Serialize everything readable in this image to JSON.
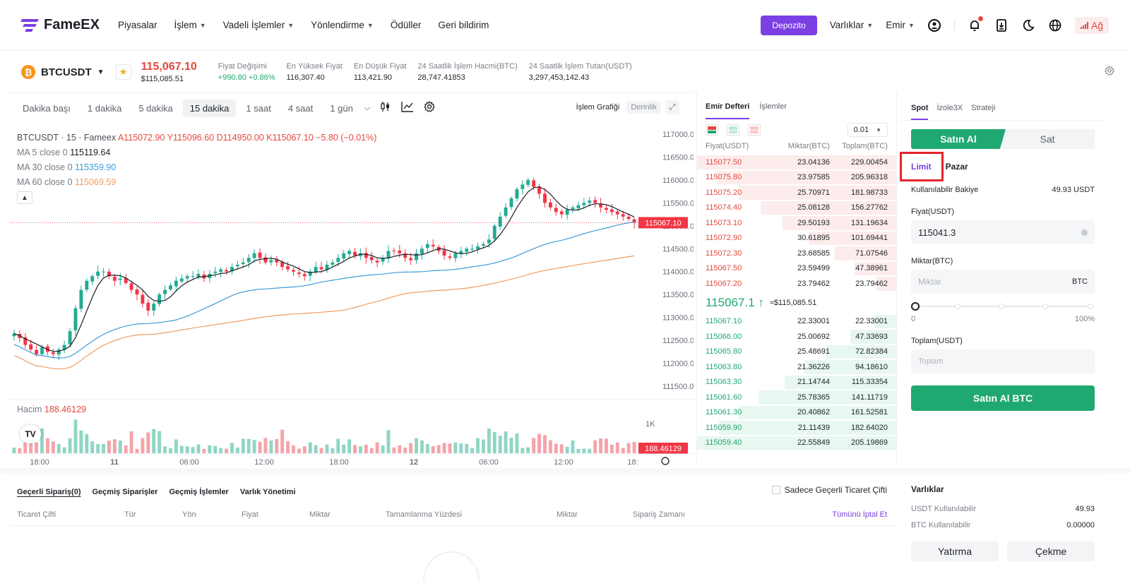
{
  "nav": {
    "logo": "FameEX",
    "items": [
      {
        "label": "Piyasalar",
        "caret": false
      },
      {
        "label": "İşlem",
        "caret": true
      },
      {
        "label": "Vadeli İşlemler",
        "caret": true
      },
      {
        "label": "Yönlendirme",
        "caret": true
      },
      {
        "label": "Ödüller",
        "caret": false
      },
      {
        "label": "Geri bildirim",
        "caret": false
      }
    ],
    "deposit": "Depozito",
    "assets_menu": "Varlıklar",
    "orders_menu": "Emir",
    "network": "Ağ",
    "colors": {
      "accent": "#7b3fe4",
      "up": "#1fa971",
      "down": "#e5483d"
    },
    "icons": [
      "user-icon",
      "bell-icon",
      "download-icon",
      "moon-icon",
      "globe-icon"
    ]
  },
  "ticker": {
    "pair": "BTCUSDT",
    "last_price": "115,067.10",
    "usd_price": "$115,085.51",
    "stats": [
      {
        "label": "Fiyat Değişimi",
        "value": "+990.80 +0.86%",
        "green": true
      },
      {
        "label": "En Yüksek Fiyat",
        "value": "116,307.40",
        "green": false
      },
      {
        "label": "En Düşük Fiyat",
        "value": "113,421.90",
        "green": false
      },
      {
        "label": "24 Saatlik İşlem Hacmi(BTC)",
        "value": "28,747.41853",
        "green": false
      },
      {
        "label": "24 Saatlik İşlem Tutarı(USDT)",
        "value": "3,297,453,142.43",
        "green": false
      }
    ]
  },
  "chart": {
    "intervals": [
      "Dakika başı",
      "1 dakika",
      "5 dakika",
      "15 dakika",
      "1 saat",
      "4 saat",
      "1 gün"
    ],
    "active_interval": "15 dakika",
    "tabs": [
      "İşlem Grafiği",
      "Derinlik"
    ],
    "legend": {
      "title": "BTCUSDT · 15 · Fameex",
      "ohlc": "A115072.90 Y115096.60 D114950.00 K115067.10 −5.80 (−0.01%)",
      "ma5_label": "MA 5 close 0",
      "ma5_value": "115119.64",
      "ma30_label": "MA 30 close 0",
      "ma30_value": "115359.90",
      "ma60_label": "MA 60 close 0",
      "ma60_value": "115069.59"
    },
    "volume_label": "Hacim",
    "volume_value": "188.46129",
    "price_badge": "115067.10",
    "volume_badge": "188.46129",
    "volume_axis_label": "1K",
    "tv_logo": "TV"
  },
  "chart_data": {
    "type": "candlestick",
    "ylim": [
      111500,
      117000
    ],
    "yticks": [
      "117000.00",
      "116500.00",
      "116000.00",
      "115500.00",
      "115000.00",
      "114500.00",
      "114000.00",
      "113500.00",
      "113000.00",
      "112500.00",
      "112000.00",
      "111500.00"
    ],
    "xticks": [
      "18:00",
      "11",
      "06:00",
      "12:00",
      "18:00",
      "12",
      "06:00",
      "12:00",
      "18:"
    ],
    "last_price": 115067.1,
    "close": [
      112650,
      112550,
      112400,
      112300,
      112200,
      112350,
      112250,
      112200,
      112300,
      112400,
      112700,
      113200,
      113600,
      113800,
      113900,
      114000,
      114000,
      113900,
      113800,
      113850,
      113750,
      113600,
      113500,
      113300,
      113150,
      113300,
      113500,
      113600,
      113700,
      113800,
      113850,
      113900,
      113900,
      113950,
      113850,
      113950,
      114000,
      114050,
      114000,
      114100,
      114150,
      114200,
      114300,
      114400,
      114300,
      114200,
      114250,
      114200,
      114100,
      114050,
      114000,
      113950,
      113900,
      114000,
      114100,
      114050,
      114150,
      114200,
      114300,
      114400,
      114450,
      114350,
      114400,
      114300,
      114250,
      114200,
      114300,
      114450,
      114450,
      114400,
      114300,
      114250,
      114400,
      114500,
      114600,
      114550,
      114450,
      114350,
      114300,
      114400,
      114450,
      114500,
      114500,
      114550,
      114600,
      114700,
      115000,
      115200,
      115400,
      115600,
      115800,
      115900,
      116000,
      115850,
      115700,
      115500,
      115400,
      115300,
      115250,
      115350,
      115400,
      115450,
      115500,
      115550,
      115500,
      115400,
      115350,
      115300,
      115250,
      115200,
      115150,
      115067
    ],
    "ma_series": [
      {
        "name": "MA 5",
        "color": "#1b1e26"
      },
      {
        "name": "MA 30",
        "color": "#3d9bdc"
      },
      {
        "name": "MA 60",
        "color": "#f19c62"
      }
    ]
  },
  "orderbook": {
    "tabs": [
      "Emir Defteri",
      "İşlemler"
    ],
    "precision": "0.01",
    "headers": [
      "Fiyat(USDT)",
      "Miktar(BTC)",
      "Toplam(BTC)"
    ],
    "asks": [
      {
        "price": "115077.50",
        "amount": "23.04136",
        "total": "229.00454",
        "depth": 1.0
      },
      {
        "price": "115075.80",
        "amount": "23.97585",
        "total": "205.96318",
        "depth": 0.9
      },
      {
        "price": "115075.20",
        "amount": "25.70971",
        "total": "181.98733",
        "depth": 0.79
      },
      {
        "price": "115074.40",
        "amount": "25.08128",
        "total": "156.27762",
        "depth": 0.68
      },
      {
        "price": "115073.10",
        "amount": "29.50193",
        "total": "131.19634",
        "depth": 0.57
      },
      {
        "price": "115072.90",
        "amount": "30.61895",
        "total": "101.69441",
        "depth": 0.44
      },
      {
        "price": "115072.30",
        "amount": "23.68585",
        "total": "71.07546",
        "depth": 0.31
      },
      {
        "price": "115067.50",
        "amount": "23.59499",
        "total": "47.38961",
        "depth": 0.21
      },
      {
        "price": "115067.20",
        "amount": "23.79462",
        "total": "23.79462",
        "depth": 0.1
      }
    ],
    "mid_price": "115067.1",
    "mid_arrow": "↑",
    "mid_usd": "≈$115,085.51",
    "bids": [
      {
        "price": "115067.10",
        "amount": "22.33001",
        "total": "22.33001",
        "depth": 0.11
      },
      {
        "price": "115066.00",
        "amount": "25.00692",
        "total": "47.33693",
        "depth": 0.23
      },
      {
        "price": "115065.80",
        "amount": "25.48691",
        "total": "72.82384",
        "depth": 0.35
      },
      {
        "price": "115063.80",
        "amount": "21.36226",
        "total": "94.18610",
        "depth": 0.46
      },
      {
        "price": "115063.30",
        "amount": "21.14744",
        "total": "115.33354",
        "depth": 0.56
      },
      {
        "price": "115061.60",
        "amount": "25.78365",
        "total": "141.11719",
        "depth": 0.69
      },
      {
        "price": "115061.30",
        "amount": "20.40862",
        "total": "161.52581",
        "depth": 0.79
      },
      {
        "price": "115059.90",
        "amount": "21.11439",
        "total": "182.64020",
        "depth": 0.89
      },
      {
        "price": "115059.40",
        "amount": "22.55849",
        "total": "205.19869",
        "depth": 1.0
      }
    ]
  },
  "trade": {
    "tabs": [
      "Spot",
      "İzole3X",
      "Strateji"
    ],
    "buy": "Satın Al",
    "sell": "Sat",
    "order_types": [
      "Limit",
      "Pazar"
    ],
    "available_label": "Kullanılabilir Bakiye",
    "available_value": "49.93 USDT",
    "price_label": "Fiyat(USDT)",
    "price_value": "115041.3",
    "amount_label": "Miktar(BTC)",
    "amount_placeholder": "Miktar",
    "amount_unit": "BTC",
    "slider_min": "0",
    "slider_max": "100%",
    "slider_value": 0,
    "total_label": "Toplam(USDT)",
    "total_placeholder": "Toplam",
    "submit": "Satın Al BTC"
  },
  "orders": {
    "tabs": [
      "Geçerli Sipariş(0)",
      "Geçmiş Siparişler",
      "Geçmiş İşlemler",
      "Varlık Yönetimi"
    ],
    "valid_only": "Sadece Geçerli Ticaret Çifti",
    "headers": [
      "Ticaret Çifti",
      "Tür",
      "Yön",
      "Fiyat",
      "Miktar",
      "Tamamlanma Yüzdesi",
      "Miktar",
      "Sipariş Zamanı"
    ],
    "cancel_all": "Tümünü İptal Et"
  },
  "assets": {
    "title": "Varlıklar",
    "usdt_label": "USDT Kullanılabilir",
    "usdt_value": "49.93",
    "btc_label": "BTC Kullanılabilir",
    "btc_value": "0.00000",
    "deposit": "Yatırma",
    "withdraw": "Çekme"
  }
}
